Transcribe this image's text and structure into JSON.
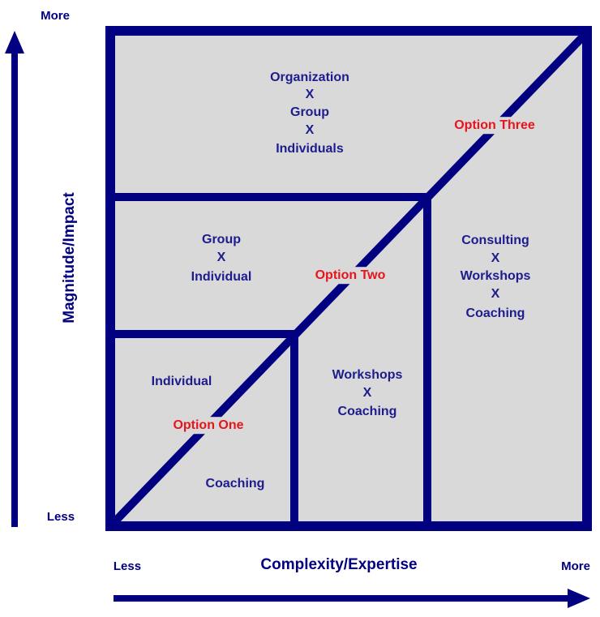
{
  "axes": {
    "y": {
      "title": "Magnitude/Impact",
      "high_label": "More",
      "low_label": "Less"
    },
    "x": {
      "title": "Complexity/Expertise",
      "low_label": "Less",
      "high_label": "More"
    }
  },
  "zones": [
    {
      "lines": [
        "Organization",
        "X",
        "Group",
        "X",
        "Individuals"
      ]
    },
    {
      "lines": [
        "Group",
        "X",
        "Individual"
      ]
    },
    {
      "lines": [
        "Consulting",
        "X",
        "Workshops",
        "X",
        "Coaching"
      ]
    },
    {
      "lines": [
        "Workshops",
        "X",
        "Coaching"
      ]
    },
    {
      "lines": [
        "Individual",
        "Coaching"
      ]
    }
  ],
  "options": [
    "Option One",
    "Option Two",
    "Option Three"
  ]
}
